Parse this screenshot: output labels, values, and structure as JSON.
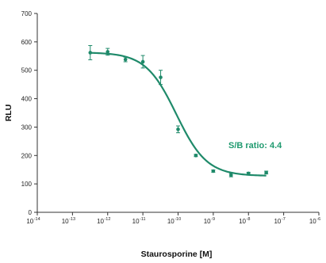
{
  "chart_data": {
    "type": "scatter",
    "xlabel": "Staurosporine [M]",
    "ylabel": "RLU",
    "xscale": "log",
    "xlim": [
      1e-14,
      1e-06
    ],
    "ylim": [
      0,
      700
    ],
    "y_ticks": [
      0,
      100,
      200,
      300,
      400,
      500,
      600,
      700
    ],
    "x_ticks": [
      {
        "value": 1e-14,
        "base": "10",
        "exp": "-14"
      },
      {
        "value": 1e-13,
        "base": "10",
        "exp": "-13"
      },
      {
        "value": 1e-12,
        "base": "10",
        "exp": "-12"
      },
      {
        "value": 1e-11,
        "base": "10",
        "exp": "-11"
      },
      {
        "value": 1e-10,
        "base": "10",
        "exp": "-10"
      },
      {
        "value": 1e-09,
        "base": "10",
        "exp": "-9"
      },
      {
        "value": 1e-08,
        "base": "10",
        "exp": "-8"
      },
      {
        "value": 1e-07,
        "base": "10",
        "exp": "-7"
      },
      {
        "value": 1e-06,
        "base": "10",
        "exp": "-6"
      }
    ],
    "series": [
      {
        "points": [
          {
            "x": 3.2e-13,
            "y": 562,
            "err": 25
          },
          {
            "x": 1e-12,
            "y": 565,
            "err": 12
          },
          {
            "x": 3.2e-12,
            "y": 538,
            "err": 8
          },
          {
            "x": 1e-11,
            "y": 530,
            "err": 22
          },
          {
            "x": 3.2e-11,
            "y": 475,
            "err": 25
          },
          {
            "x": 1e-10,
            "y": 292,
            "err": 12
          },
          {
            "x": 3.2e-10,
            "y": 200,
            "err": 4
          },
          {
            "x": 1e-09,
            "y": 145,
            "err": 4
          },
          {
            "x": 3.2e-09,
            "y": 131,
            "err": 6
          },
          {
            "x": 1e-08,
            "y": 137,
            "err": 4
          },
          {
            "x": 3.2e-08,
            "y": 140,
            "err": 5
          }
        ],
        "fit": {
          "model": "4PL",
          "top": 563,
          "bottom": 128,
          "log_ic50": -10.05,
          "hill": 1.0,
          "x_range": [
            3.2e-13,
            3.2e-08
          ]
        }
      }
    ],
    "annotation": "S/B ratio: 4.4",
    "colors": {
      "series": "#1f8a6a",
      "axis": "#333333",
      "annotation": "#1f9a6f"
    },
    "grid": false,
    "legend": "none"
  }
}
